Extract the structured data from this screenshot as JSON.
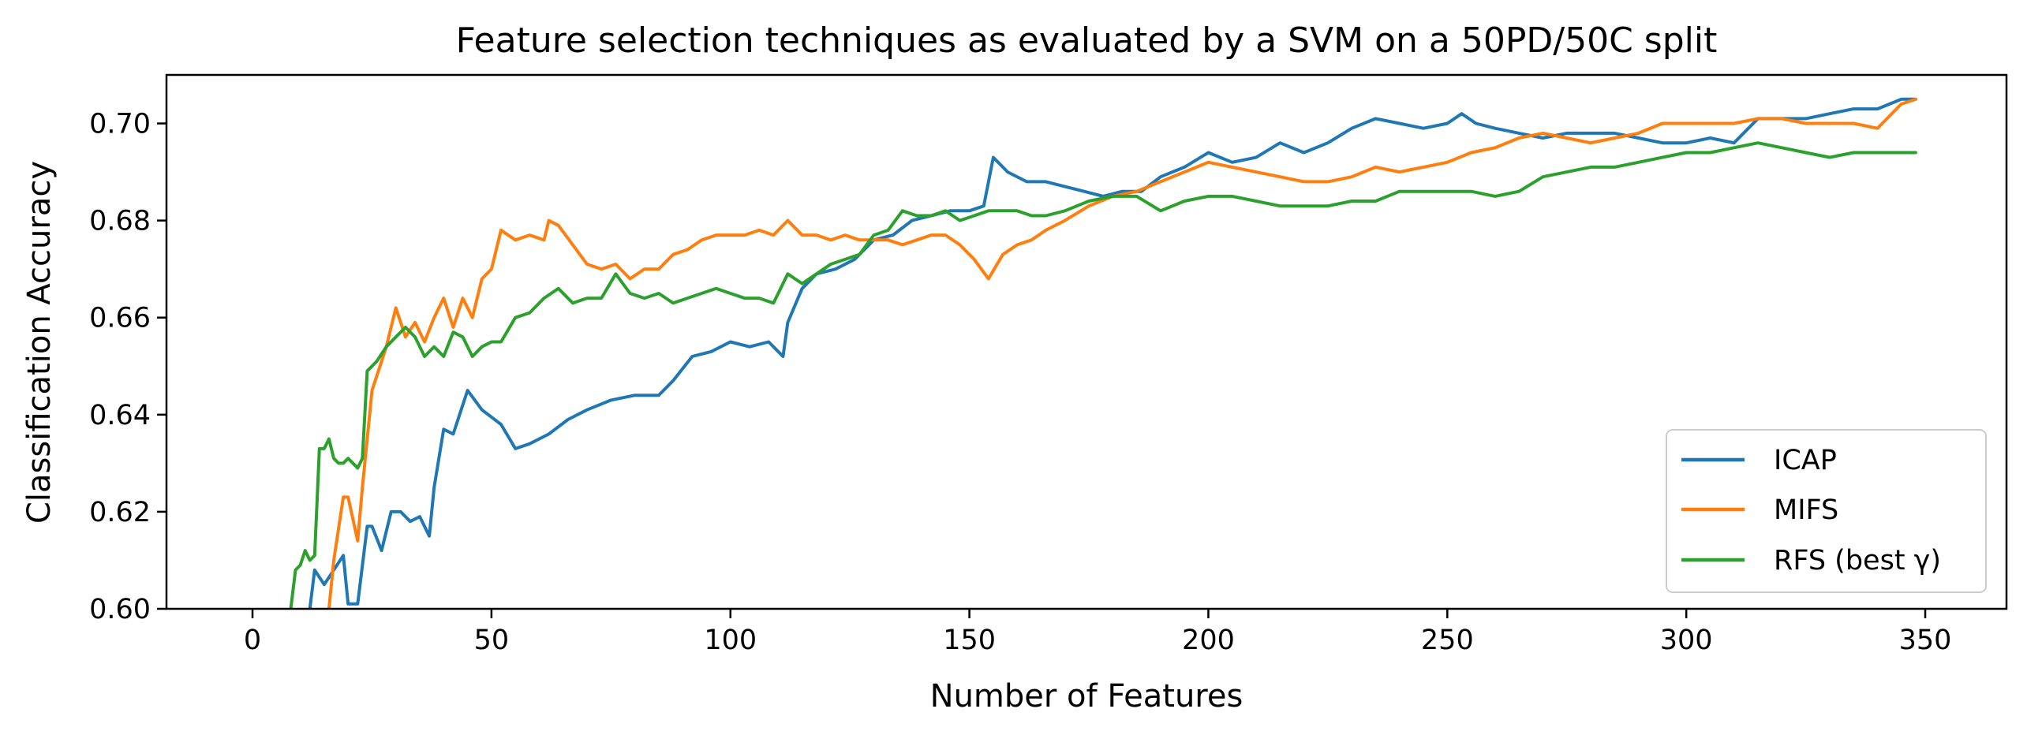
{
  "chart_data": {
    "type": "line",
    "title": "Feature selection techniques as evaluated by a SVM on a 50PD/50C split",
    "xlabel": "Number of Features",
    "ylabel": "Classification Accuracy",
    "xlim": [
      -18,
      367
    ],
    "ylim": [
      0.6,
      0.71
    ],
    "xticks": [
      0,
      50,
      100,
      150,
      200,
      250,
      300,
      350
    ],
    "yticks": [
      0.6,
      0.62,
      0.64,
      0.66,
      0.68,
      0.7
    ],
    "ytick_labels": [
      "0.60",
      "0.62",
      "0.64",
      "0.66",
      "0.68",
      "0.70"
    ],
    "grid": false,
    "legend_position": "lower right",
    "series": [
      {
        "name": "ICAP",
        "color": "#1f77b4",
        "x": [
          12,
          13,
          15,
          17,
          19,
          20,
          22,
          24,
          25,
          27,
          29,
          31,
          33,
          35,
          37,
          38,
          40,
          42,
          45,
          48,
          52,
          55,
          58,
          62,
          66,
          70,
          75,
          80,
          85,
          88,
          92,
          96,
          100,
          104,
          108,
          111,
          112,
          115,
          118,
          122,
          126,
          130,
          134,
          138,
          142,
          146,
          150,
          153,
          155,
          158,
          162,
          166,
          170,
          174,
          178,
          182,
          186,
          190,
          195,
          200,
          205,
          210,
          215,
          220,
          225,
          230,
          235,
          240,
          245,
          250,
          253,
          256,
          260,
          265,
          270,
          275,
          280,
          285,
          290,
          295,
          300,
          305,
          310,
          315,
          320,
          325,
          330,
          335,
          340,
          345,
          348
        ],
        "values": [
          0.6,
          0.608,
          0.605,
          0.608,
          0.611,
          0.601,
          0.601,
          0.617,
          0.617,
          0.612,
          0.62,
          0.62,
          0.618,
          0.619,
          0.615,
          0.625,
          0.637,
          0.636,
          0.645,
          0.641,
          0.638,
          0.633,
          0.634,
          0.636,
          0.639,
          0.641,
          0.643,
          0.644,
          0.644,
          0.647,
          0.652,
          0.653,
          0.655,
          0.654,
          0.655,
          0.652,
          0.659,
          0.666,
          0.669,
          0.67,
          0.672,
          0.676,
          0.677,
          0.68,
          0.681,
          0.682,
          0.682,
          0.683,
          0.693,
          0.69,
          0.688,
          0.688,
          0.687,
          0.686,
          0.685,
          0.686,
          0.686,
          0.689,
          0.691,
          0.694,
          0.692,
          0.693,
          0.696,
          0.694,
          0.696,
          0.699,
          0.701,
          0.7,
          0.699,
          0.7,
          0.702,
          0.7,
          0.699,
          0.698,
          0.697,
          0.698,
          0.698,
          0.698,
          0.697,
          0.696,
          0.696,
          0.697,
          0.696,
          0.701,
          0.701,
          0.701,
          0.702,
          0.703,
          0.703,
          0.705,
          0.705
        ]
      },
      {
        "name": "MIFS",
        "color": "#ff7f0e",
        "x": [
          16,
          17,
          19,
          20,
          22,
          23,
          25,
          27,
          28,
          30,
          32,
          34,
          36,
          38,
          40,
          42,
          44,
          46,
          48,
          50,
          52,
          55,
          58,
          61,
          62,
          64,
          67,
          70,
          73,
          76,
          79,
          82,
          85,
          88,
          91,
          94,
          97,
          100,
          103,
          106,
          109,
          112,
          115,
          118,
          121,
          124,
          127,
          130,
          133,
          136,
          139,
          142,
          145,
          148,
          151,
          154,
          157,
          160,
          163,
          166,
          170,
          175,
          180,
          185,
          190,
          195,
          200,
          205,
          210,
          215,
          220,
          225,
          230,
          235,
          240,
          245,
          250,
          255,
          260,
          265,
          270,
          275,
          280,
          285,
          290,
          295,
          300,
          305,
          310,
          315,
          320,
          325,
          330,
          335,
          340,
          345,
          348
        ],
        "values": [
          0.6,
          0.61,
          0.623,
          0.623,
          0.614,
          0.625,
          0.645,
          0.651,
          0.654,
          0.662,
          0.656,
          0.659,
          0.655,
          0.66,
          0.664,
          0.658,
          0.664,
          0.66,
          0.668,
          0.67,
          0.678,
          0.676,
          0.677,
          0.676,
          0.68,
          0.679,
          0.675,
          0.671,
          0.67,
          0.671,
          0.668,
          0.67,
          0.67,
          0.673,
          0.674,
          0.676,
          0.677,
          0.677,
          0.677,
          0.678,
          0.677,
          0.68,
          0.677,
          0.677,
          0.676,
          0.677,
          0.676,
          0.676,
          0.676,
          0.675,
          0.676,
          0.677,
          0.677,
          0.675,
          0.672,
          0.668,
          0.673,
          0.675,
          0.676,
          0.678,
          0.68,
          0.683,
          0.685,
          0.686,
          0.688,
          0.69,
          0.692,
          0.691,
          0.69,
          0.689,
          0.688,
          0.688,
          0.689,
          0.691,
          0.69,
          0.691,
          0.692,
          0.694,
          0.695,
          0.697,
          0.698,
          0.697,
          0.696,
          0.697,
          0.698,
          0.7,
          0.7,
          0.7,
          0.7,
          0.701,
          0.701,
          0.7,
          0.7,
          0.7,
          0.699,
          0.704,
          0.705
        ]
      },
      {
        "name": "RFS (best γ)",
        "color": "#2ca02c",
        "x": [
          8,
          9,
          10,
          11,
          12,
          13,
          14,
          15,
          16,
          17,
          18,
          19,
          20,
          21,
          22,
          23,
          24,
          25,
          26,
          28,
          30,
          32,
          34,
          36,
          38,
          40,
          42,
          44,
          46,
          48,
          50,
          52,
          55,
          58,
          61,
          64,
          67,
          70,
          73,
          76,
          79,
          82,
          85,
          88,
          91,
          94,
          97,
          100,
          103,
          106,
          109,
          112,
          115,
          118,
          121,
          124,
          127,
          130,
          133,
          136,
          139,
          142,
          145,
          148,
          151,
          154,
          157,
          160,
          163,
          166,
          170,
          175,
          180,
          185,
          190,
          195,
          200,
          205,
          210,
          215,
          220,
          225,
          230,
          235,
          240,
          245,
          250,
          255,
          260,
          265,
          270,
          275,
          280,
          285,
          290,
          295,
          300,
          305,
          310,
          315,
          320,
          325,
          330,
          335,
          340,
          345,
          348
        ],
        "values": [
          0.6,
          0.608,
          0.609,
          0.612,
          0.61,
          0.611,
          0.633,
          0.633,
          0.635,
          0.631,
          0.63,
          0.63,
          0.631,
          0.63,
          0.629,
          0.631,
          0.649,
          0.65,
          0.651,
          0.654,
          0.656,
          0.658,
          0.656,
          0.652,
          0.654,
          0.652,
          0.657,
          0.656,
          0.652,
          0.654,
          0.655,
          0.655,
          0.66,
          0.661,
          0.664,
          0.666,
          0.663,
          0.664,
          0.664,
          0.669,
          0.665,
          0.664,
          0.665,
          0.663,
          0.664,
          0.665,
          0.666,
          0.665,
          0.664,
          0.664,
          0.663,
          0.669,
          0.667,
          0.669,
          0.671,
          0.672,
          0.673,
          0.677,
          0.678,
          0.682,
          0.681,
          0.681,
          0.682,
          0.68,
          0.681,
          0.682,
          0.682,
          0.682,
          0.681,
          0.681,
          0.682,
          0.684,
          0.685,
          0.685,
          0.682,
          0.684,
          0.685,
          0.685,
          0.684,
          0.683,
          0.683,
          0.683,
          0.684,
          0.684,
          0.686,
          0.686,
          0.686,
          0.686,
          0.685,
          0.686,
          0.689,
          0.69,
          0.691,
          0.691,
          0.692,
          0.693,
          0.694,
          0.694,
          0.695,
          0.696,
          0.695,
          0.694,
          0.693,
          0.694,
          0.694,
          0.694,
          0.694
        ]
      }
    ]
  }
}
